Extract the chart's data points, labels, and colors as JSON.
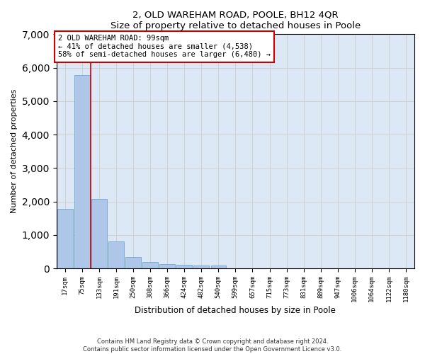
{
  "title_line1": "2, OLD WAREHAM ROAD, POOLE, BH12 4QR",
  "title_line2": "Size of property relative to detached houses in Poole",
  "xlabel": "Distribution of detached houses by size in Poole",
  "ylabel": "Number of detached properties",
  "bar_labels": [
    "17sqm",
    "75sqm",
    "133sqm",
    "191sqm",
    "250sqm",
    "308sqm",
    "366sqm",
    "424sqm",
    "482sqm",
    "540sqm",
    "599sqm",
    "657sqm",
    "715sqm",
    "773sqm",
    "831sqm",
    "889sqm",
    "947sqm",
    "1006sqm",
    "1064sqm",
    "1122sqm",
    "1180sqm"
  ],
  "bar_values": [
    1780,
    5780,
    2080,
    800,
    340,
    195,
    120,
    105,
    95,
    80,
    0,
    0,
    0,
    0,
    0,
    0,
    0,
    0,
    0,
    0,
    0
  ],
  "bar_color": "#aec6e8",
  "bar_edge_color": "#5a9fd4",
  "vline_x": 1.5,
  "annotation_text": "2 OLD WAREHAM ROAD: 99sqm\n← 41% of detached houses are smaller (4,538)\n58% of semi-detached houses are larger (6,480) →",
  "annotation_box_color": "#ffffff",
  "annotation_box_edge": "#cc0000",
  "vline_color": "#cc0000",
  "ylim": [
    0,
    7000
  ],
  "yticks": [
    0,
    1000,
    2000,
    3000,
    4000,
    5000,
    6000,
    7000
  ],
  "grid_color": "#cccccc",
  "bg_color": "#dce8f5",
  "footer_line1": "Contains HM Land Registry data © Crown copyright and database right 2024.",
  "footer_line2": "Contains public sector information licensed under the Open Government Licence v3.0."
}
